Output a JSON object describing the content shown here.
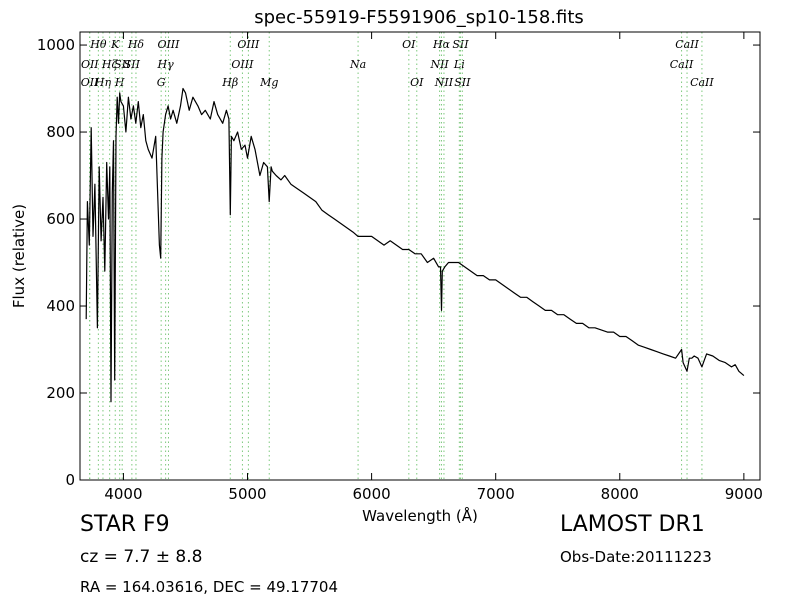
{
  "chart_data": {
    "type": "line",
    "title": "spec-55919-F5591906_sp10-158.fits",
    "xlabel": "Wavelength (Å)",
    "ylabel": "Flux (relative)",
    "xlim": [
      3650,
      9130
    ],
    "ylim": [
      0,
      1030
    ],
    "xticks": [
      4000,
      5000,
      6000,
      7000,
      8000,
      9000
    ],
    "yticks": [
      0,
      200,
      400,
      600,
      800,
      1000
    ],
    "grid": false,
    "line_color": "#000000",
    "marker_line_color": "#7dc97d",
    "spectrum": {
      "x": [
        3700,
        3710,
        3725,
        3740,
        3755,
        3770,
        3790,
        3805,
        3820,
        3835,
        3850,
        3865,
        3880,
        3890,
        3900,
        3910,
        3920,
        3930,
        3940,
        3950,
        3960,
        3970,
        3980,
        4000,
        4020,
        4040,
        4060,
        4080,
        4100,
        4120,
        4140,
        4160,
        4180,
        4200,
        4230,
        4260,
        4290,
        4300,
        4310,
        4320,
        4340,
        4360,
        4380,
        4400,
        4430,
        4460,
        4480,
        4500,
        4530,
        4560,
        4600,
        4630,
        4660,
        4700,
        4730,
        4760,
        4800,
        4830,
        4850,
        4861,
        4870,
        4890,
        4920,
        4950,
        4980,
        5000,
        5030,
        5060,
        5100,
        5130,
        5160,
        5175,
        5190,
        5200,
        5230,
        5270,
        5300,
        5350,
        5400,
        5450,
        5500,
        5550,
        5600,
        5650,
        5700,
        5750,
        5800,
        5850,
        5890,
        5900,
        5950,
        6000,
        6050,
        6100,
        6150,
        6200,
        6250,
        6300,
        6350,
        6400,
        6450,
        6500,
        6540,
        6555,
        6563,
        6570,
        6590,
        6620,
        6650,
        6700,
        6750,
        6800,
        6850,
        6900,
        6950,
        7000,
        7050,
        7100,
        7150,
        7200,
        7250,
        7300,
        7350,
        7400,
        7450,
        7500,
        7550,
        7600,
        7650,
        7700,
        7750,
        7800,
        7850,
        7900,
        7950,
        8000,
        8050,
        8100,
        8150,
        8200,
        8250,
        8300,
        8350,
        8400,
        8450,
        8498,
        8510,
        8542,
        8560,
        8580,
        8600,
        8630,
        8662,
        8680,
        8700,
        8750,
        8800,
        8850,
        8900,
        8930,
        8960,
        9000
      ],
      "y": [
        370,
        640,
        540,
        810,
        560,
        680,
        350,
        720,
        550,
        650,
        480,
        730,
        600,
        720,
        180,
        660,
        780,
        230,
        790,
        880,
        820,
        890,
        870,
        860,
        800,
        880,
        830,
        860,
        820,
        870,
        810,
        840,
        780,
        760,
        740,
        790,
        540,
        510,
        740,
        800,
        840,
        860,
        830,
        850,
        820,
        860,
        900,
        890,
        850,
        880,
        860,
        840,
        850,
        830,
        870,
        840,
        820,
        850,
        830,
        610,
        790,
        780,
        800,
        760,
        770,
        740,
        790,
        760,
        700,
        730,
        720,
        640,
        720,
        710,
        700,
        690,
        700,
        680,
        670,
        660,
        650,
        640,
        620,
        610,
        600,
        590,
        580,
        570,
        560,
        560,
        560,
        560,
        550,
        540,
        550,
        540,
        530,
        530,
        520,
        520,
        500,
        510,
        490,
        490,
        390,
        480,
        490,
        500,
        500,
        500,
        490,
        480,
        470,
        470,
        460,
        460,
        450,
        440,
        430,
        420,
        420,
        410,
        400,
        390,
        390,
        380,
        380,
        370,
        360,
        360,
        350,
        350,
        345,
        340,
        340,
        330,
        330,
        320,
        310,
        305,
        300,
        295,
        290,
        285,
        280,
        300,
        270,
        250,
        280,
        280,
        285,
        280,
        260,
        275,
        290,
        285,
        275,
        270,
        260,
        265,
        250,
        240
      ]
    },
    "line_markers": [
      {
        "x": 3727,
        "label": "OII",
        "row": 2
      },
      {
        "x": 3729,
        "label": "OII",
        "row": 1
      },
      {
        "x": 3798,
        "label": "Hθ",
        "row": 0
      },
      {
        "x": 3835,
        "label": "Hη",
        "row": 2
      },
      {
        "x": 3889,
        "label": "Hζ",
        "row": 1
      },
      {
        "x": 3934,
        "label": "K",
        "row": 0
      },
      {
        "x": 3970,
        "label": "H",
        "row": 2
      },
      {
        "x": 3990,
        "label": "SII",
        "row": 1
      },
      {
        "x": 4068,
        "label": "SII",
        "row": 1
      },
      {
        "x": 4101,
        "label": "Hδ",
        "row": 0
      },
      {
        "x": 4304,
        "label": "G",
        "row": 2
      },
      {
        "x": 4340,
        "label": "Hγ",
        "row": 1
      },
      {
        "x": 4363,
        "label": "OIII",
        "row": 0
      },
      {
        "x": 4861,
        "label": "Hβ",
        "row": 2
      },
      {
        "x": 4959,
        "label": "OIII",
        "row": 1
      },
      {
        "x": 5007,
        "label": "OIII",
        "row": 0
      },
      {
        "x": 5175,
        "label": "Mg",
        "row": 2
      },
      {
        "x": 5891,
        "label": "Na",
        "row": 1
      },
      {
        "x": 6300,
        "label": "OI",
        "row": 0
      },
      {
        "x": 6364,
        "label": "OI",
        "row": 2
      },
      {
        "x": 6548,
        "label": "NII",
        "row": 1
      },
      {
        "x": 6563,
        "label": "Hα",
        "row": 0
      },
      {
        "x": 6583,
        "label": "NII",
        "row": 2
      },
      {
        "x": 6707,
        "label": "Li",
        "row": 1
      },
      {
        "x": 6716,
        "label": "SII",
        "row": 0
      },
      {
        "x": 6731,
        "label": "SII",
        "row": 2
      },
      {
        "x": 8498,
        "label": "CaII",
        "row": 1
      },
      {
        "x": 8542,
        "label": "CaII",
        "row": 0
      },
      {
        "x": 8662,
        "label": "CaII",
        "row": 2
      }
    ]
  },
  "info": {
    "object_class": "STAR   F9",
    "redshift": "cz = 7.7 ± 8.8",
    "coords": "RA = 164.03616, DEC = 49.17704",
    "survey": "LAMOST DR1",
    "obs_date": "Obs-Date:20111223"
  }
}
